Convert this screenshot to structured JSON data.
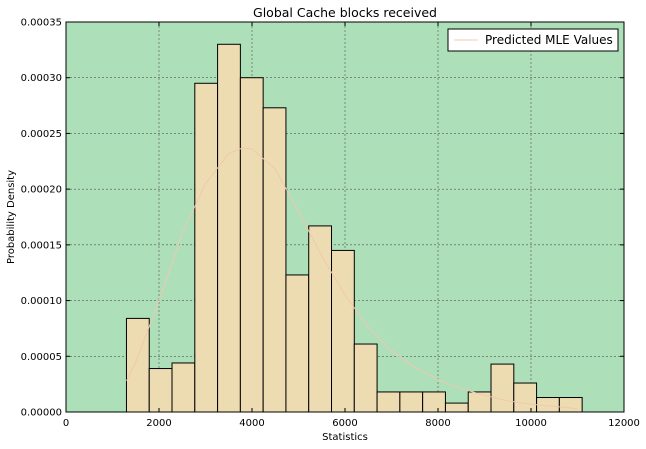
{
  "chart_data": {
    "type": "bar",
    "title": "Global Cache blocks received",
    "xlabel": "Statistics",
    "ylabel": "Probability Density",
    "xlim": [
      0,
      12000
    ],
    "ylim": [
      0,
      0.00035
    ],
    "xticks": [
      0,
      2000,
      4000,
      6000,
      8000,
      10000,
      12000
    ],
    "xtick_labels": [
      "0",
      "2000",
      "4000",
      "6000",
      "8000",
      "10000",
      "12000"
    ],
    "yticks": [
      0,
      5e-05,
      0.0001,
      0.00015,
      0.0002,
      0.00025,
      0.0003,
      0.00035
    ],
    "ytick_labels": [
      "0.00000",
      "0.00005",
      "0.00010",
      "0.00015",
      "0.00020",
      "0.00025",
      "0.00030",
      "0.00035"
    ],
    "grid": true,
    "legend_position": "top-right",
    "histogram": {
      "bin_start": 1300,
      "bin_width": 490,
      "densities": [
        8.4e-05,
        3.9e-05,
        4.4e-05,
        0.000295,
        0.00033,
        0.0003,
        0.000273,
        0.000123,
        0.000167,
        0.000145,
        6.1e-05,
        1.8e-05,
        1.8e-05,
        1.8e-05,
        8e-06,
        1.8e-05,
        4.3e-05,
        2.6e-05,
        1.3e-05,
        1.3e-05
      ]
    },
    "series": [
      {
        "name": "Predicted MLE Values",
        "type": "line",
        "x": [
          1300,
          1500,
          2000,
          2500,
          3000,
          3500,
          3800,
          4000,
          4500,
          5000,
          5500,
          6000,
          6500,
          7000,
          7500,
          8000,
          8500,
          9000,
          9500,
          10000,
          10500,
          11000
        ],
        "y": [
          2.8e-05,
          4.5e-05,
          0.0001,
          0.00016,
          0.000205,
          0.000232,
          0.000237,
          0.000236,
          0.000218,
          0.00018,
          0.00014,
          0.000105,
          7.6e-05,
          5.5e-05,
          4e-05,
          2.9e-05,
          2.1e-05,
          1.5e-05,
          1e-05,
          7e-06,
          5e-06,
          3e-06
        ]
      }
    ],
    "colors": {
      "plot_background": "#addfb9",
      "bar_fill": "#eddcb1",
      "bar_edge": "#000000",
      "mle_line": "#f0c8b0",
      "grid": "#555555"
    }
  }
}
